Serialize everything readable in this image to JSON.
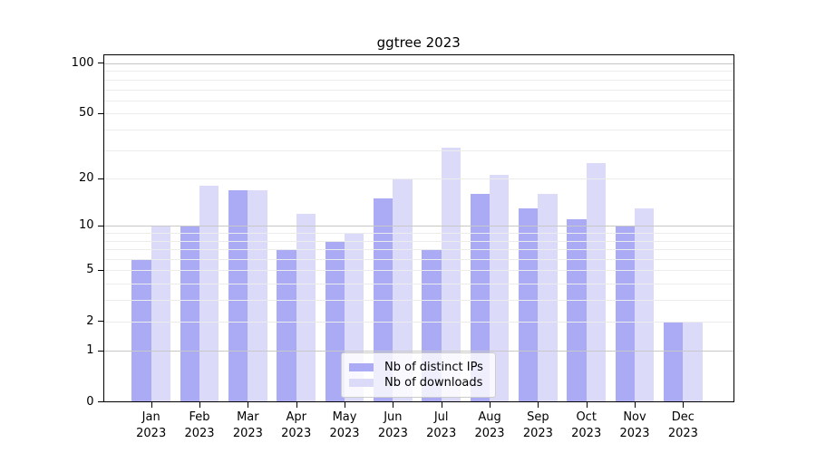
{
  "title": "ggtree 2023",
  "colors": {
    "background": "#ffffff",
    "axis": "#000000",
    "grid_major": "#c8c8c8",
    "grid_minor": "#ececec",
    "legend_border": "#cccccc",
    "legend_background": "rgba(255,255,255,0.8)",
    "ips_bar": "#aaaaf5",
    "downloads_bar": "#dbdbf9"
  },
  "chart_data": {
    "type": "bar",
    "title": "ggtree 2023",
    "categories": [
      "Jan",
      "Feb",
      "Mar",
      "Apr",
      "May",
      "Jun",
      "Jul",
      "Aug",
      "Sep",
      "Oct",
      "Nov",
      "Dec"
    ],
    "year_label": "2023",
    "series": [
      {
        "name": "Nb of distinct IPs",
        "color": "#aaaaf5",
        "values": [
          6,
          10,
          17,
          7,
          8,
          15,
          7,
          16,
          13,
          11,
          10,
          2
        ]
      },
      {
        "name": "Nb of downloads",
        "color": "#dbdbf9",
        "values": [
          10,
          18,
          17,
          12,
          9,
          20,
          31,
          21,
          16,
          25,
          13,
          2
        ]
      }
    ],
    "xlabel": "",
    "ylabel": "",
    "y_axis": {
      "scale": "log1p",
      "tick_labels": [
        100,
        50,
        20,
        10,
        5,
        2,
        1,
        0
      ],
      "major_gridlines": [
        1,
        10,
        100
      ],
      "minor_gridlines": [
        2,
        3,
        4,
        5,
        6,
        7,
        8,
        9,
        20,
        30,
        40,
        50,
        60,
        70,
        80,
        90
      ],
      "ylim": [
        0,
        113
      ]
    },
    "grid": true,
    "legend_position": "lower center"
  }
}
